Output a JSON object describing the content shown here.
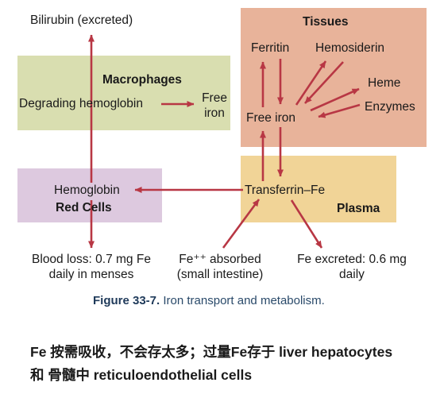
{
  "diagram": {
    "boxes": {
      "macrophages": {
        "title": "Macrophages",
        "color": "#d9deb0"
      },
      "tissues": {
        "title": "Tissues",
        "color": "#e8b39a"
      },
      "red_cells": {
        "title": "Red Cells",
        "color": "#ddc9df"
      },
      "plasma": {
        "title": "Plasma",
        "color": "#f1d497"
      }
    },
    "arrow_color": "#b83744",
    "nodes": {
      "bilirubin": "Bilirubin (excreted)",
      "degrading_hemoglobin": "Degrading hemoglobin",
      "free_iron_macrophage_line1": "Free",
      "free_iron_macrophage_line2": "iron",
      "ferritin": "Ferritin",
      "hemosiderin": "Hemosiderin",
      "heme": "Heme",
      "enzymes": "Enzymes",
      "free_iron_tissue": "Free iron",
      "hemoglobin": "Hemoglobin",
      "transferrin_fe": "Transferrin–Fe",
      "blood_loss_line1": "Blood loss: 0.7 mg Fe",
      "blood_loss_line2": "daily in menses",
      "fe_absorbed_line1": "Fe⁺⁺ absorbed",
      "fe_absorbed_line2": "(small intestine)",
      "fe_excreted_line1": "Fe excreted: 0.6 mg",
      "fe_excreted_line2": "daily"
    }
  },
  "caption": {
    "figure_label": "Figure 33-7.",
    "text": "Iron transport and metabolism."
  },
  "notes": {
    "line1": "Fe 按需吸收，不会存太多；过量Fe存于 liver hepatocytes",
    "line2": "和 骨髓中 reticuloendothelial cells"
  }
}
